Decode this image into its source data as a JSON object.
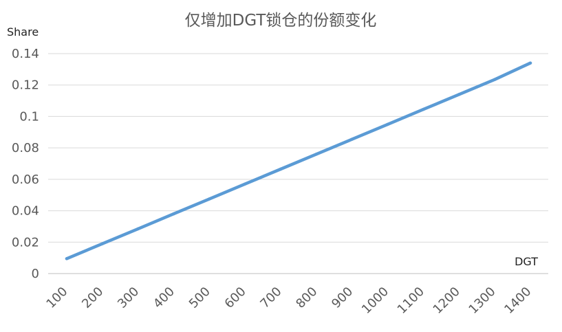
{
  "chart_data": {
    "type": "line",
    "title": "仅增加DGT锁仓的份额变化",
    "xlabel": "DGT",
    "ylabel": "Share",
    "categories": [
      "100",
      "200",
      "300",
      "400",
      "500",
      "600",
      "700",
      "800",
      "900",
      "1000",
      "1100",
      "1200",
      "1300",
      "1400"
    ],
    "y_ticks": [
      "0",
      "0.02",
      "0.04",
      "0.06",
      "0.08",
      "0.1",
      "0.12",
      "0.14"
    ],
    "ylim": [
      0,
      0.14
    ],
    "grid": true,
    "legend": "none",
    "series": [
      {
        "color": "#5b9bd5",
        "values": [
          0.0095,
          0.019,
          0.0285,
          0.038,
          0.0475,
          0.057,
          0.0665,
          0.076,
          0.0855,
          0.095,
          0.1045,
          0.114,
          0.1235,
          0.134
        ]
      }
    ]
  }
}
